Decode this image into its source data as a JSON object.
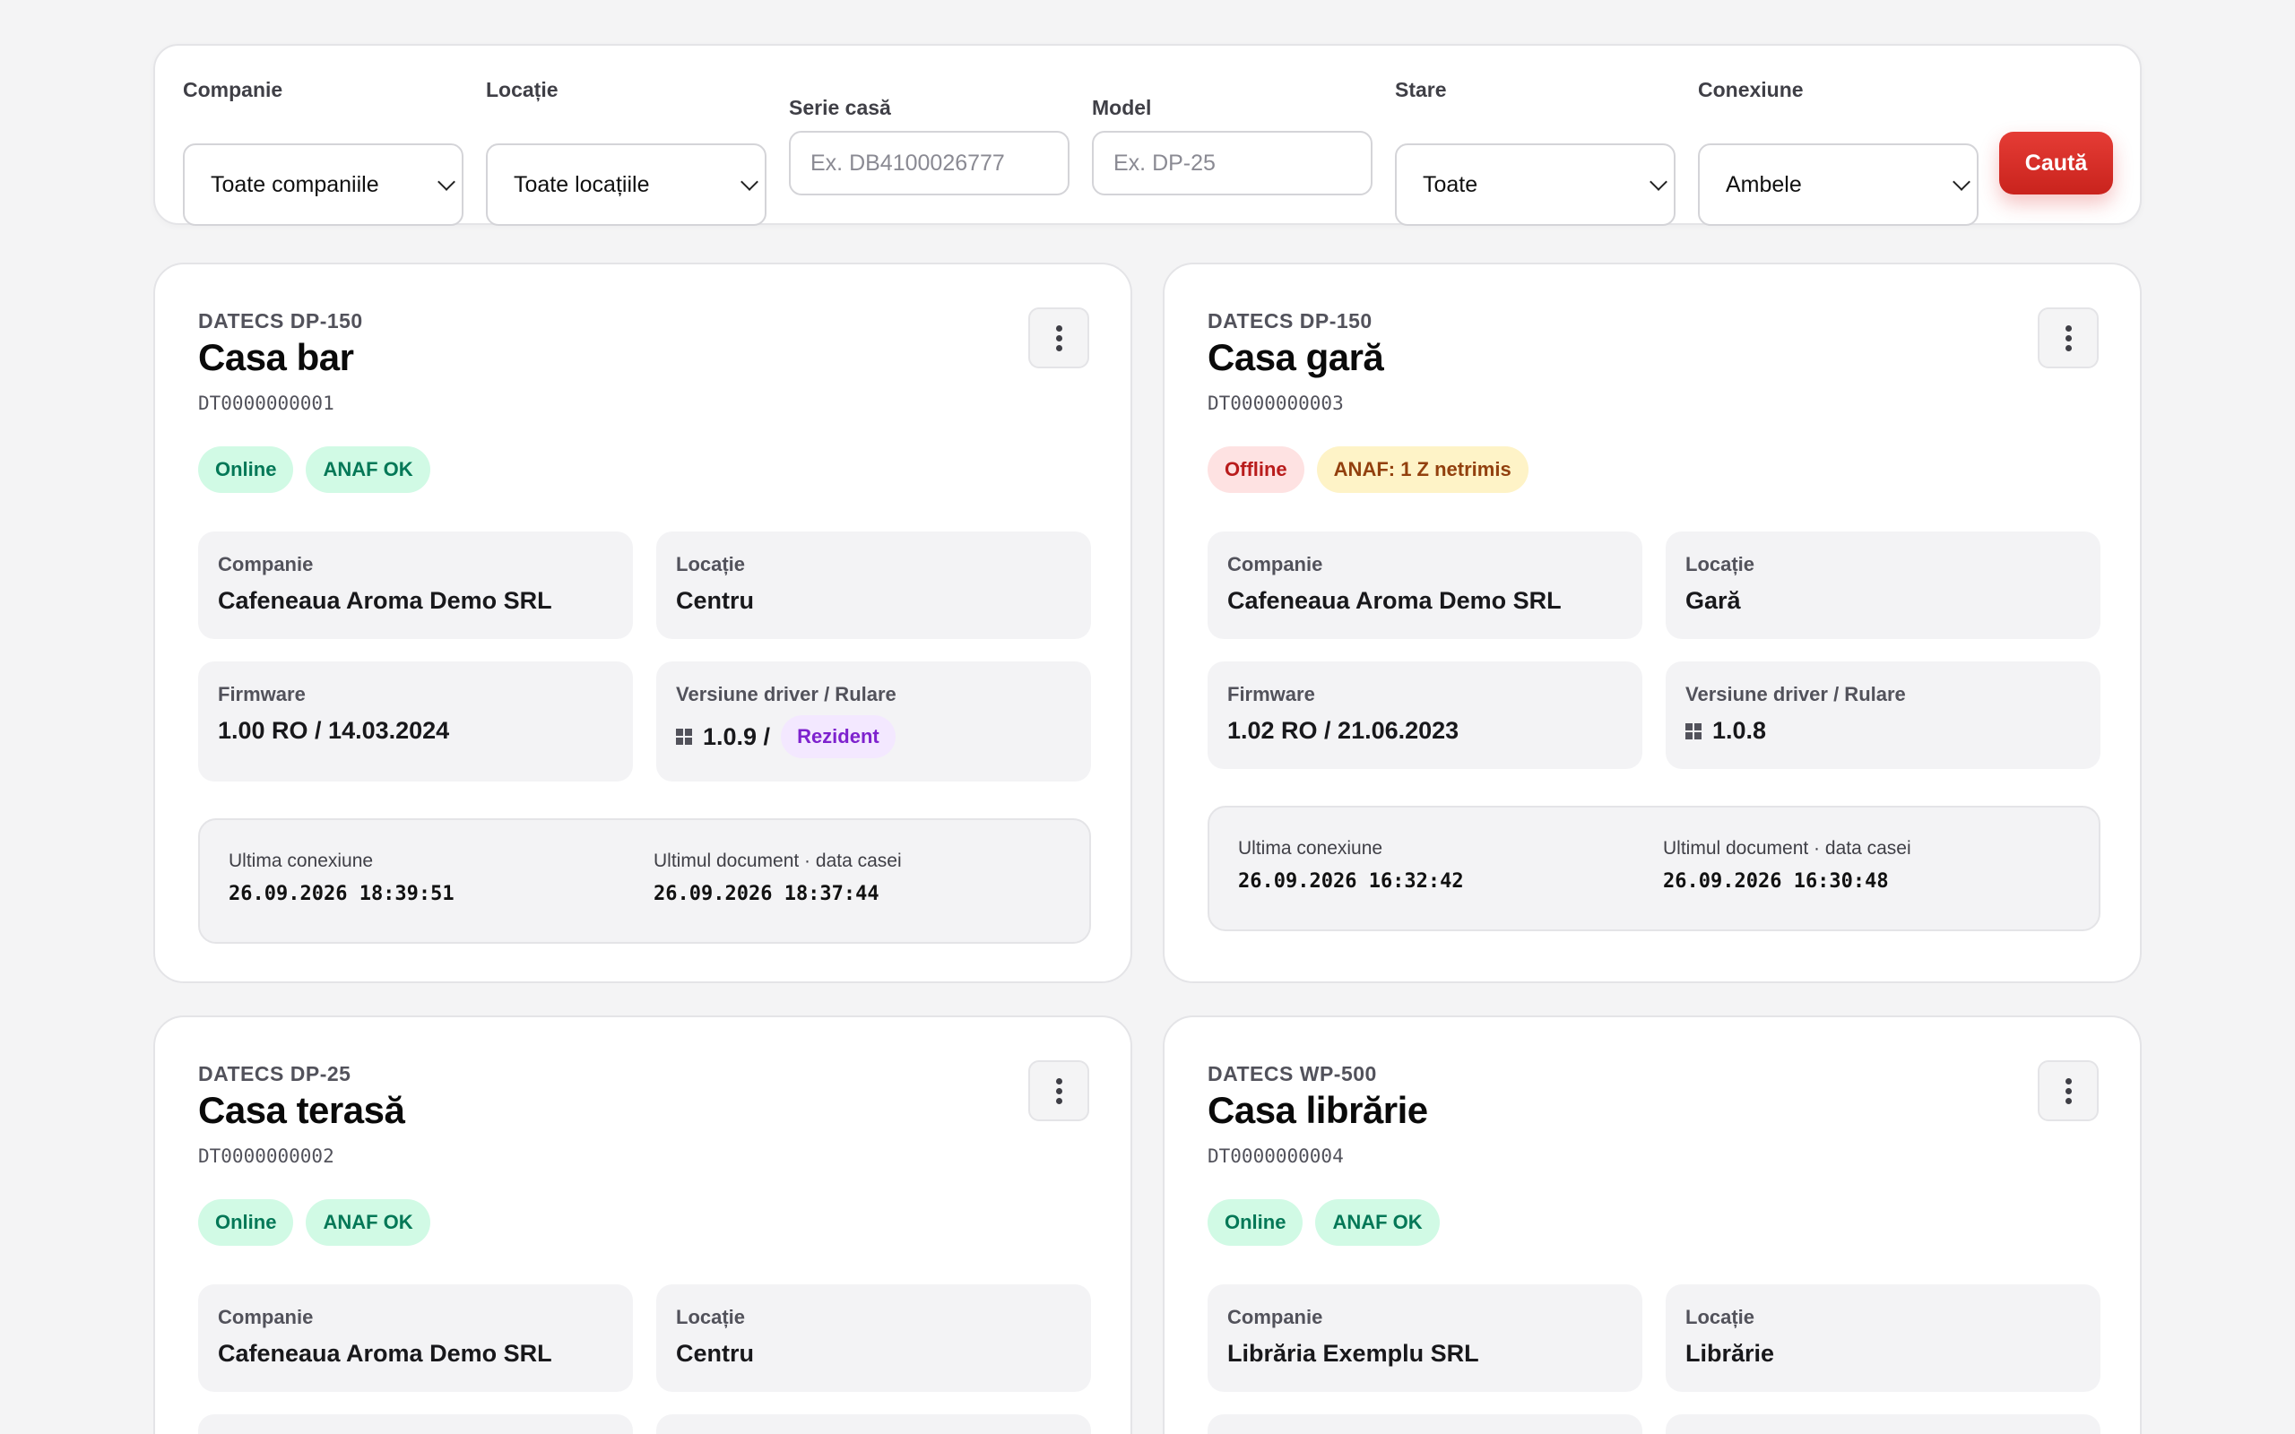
{
  "filters": {
    "company": {
      "label": "Companie",
      "value": "Toate companiile"
    },
    "location": {
      "label": "Locație",
      "value": "Toate locațiile"
    },
    "serial": {
      "label": "Serie casă",
      "placeholder": "Ex. DB4100026777"
    },
    "model": {
      "label": "Model",
      "placeholder": "Ex. DP-25"
    },
    "status": {
      "label": "Stare",
      "value": "Toate"
    },
    "connection": {
      "label": "Conexiune",
      "value": "Ambele"
    },
    "search_label": "Caută"
  },
  "labels": {
    "company": "Companie",
    "location": "Locație",
    "firmware": "Firmware",
    "driver": "Versiune driver / Rulare",
    "last_connection": "Ultima conexiune",
    "last_document": "Ultimul document · data casei"
  },
  "cards": [
    {
      "model": "DATECS DP-150",
      "title": "Casa bar",
      "serial": "DT0000000001",
      "status": "Online",
      "anaf": "ANAF OK",
      "company": "Cafeneaua Aroma Demo SRL",
      "location": "Centru",
      "firmware": "1.00 RO / 14.03.2024",
      "driver": "1.0.9 /",
      "run_mode": "Rezident",
      "last_connection": "26.09.2026 18:39:51",
      "last_document": "26.09.2026 18:37:44"
    },
    {
      "model": "DATECS DP-150",
      "title": "Casa gară",
      "serial": "DT0000000003",
      "status": "Offline",
      "anaf": "ANAF: 1 Z netrimis",
      "company": "Cafeneaua Aroma Demo SRL",
      "location": "Gară",
      "firmware": "1.02 RO / 21.06.2023",
      "driver": "1.0.8",
      "last_connection": "26.09.2026 16:32:42",
      "last_document": "26.09.2026 16:30:48"
    },
    {
      "model": "DATECS DP-25",
      "title": "Casa terasă",
      "serial": "DT0000000002",
      "status": "Online",
      "anaf": "ANAF OK",
      "company": "Cafeneaua Aroma Demo SRL",
      "location": "Centru"
    },
    {
      "model": "DATECS WP-500",
      "title": "Casa librărie",
      "serial": "DT0000000004",
      "status": "Online",
      "anaf": "ANAF OK",
      "company": "Librăria Exemplu SRL",
      "location": "Librărie"
    }
  ],
  "colors": {
    "primary": "#dc2f2a",
    "ok_bg": "#d1fae5",
    "ok_text": "#047857",
    "bad_bg": "#fee2e2",
    "bad_text": "#b91c1c",
    "warn_bg": "#fef3c7",
    "warn_text": "#92400e",
    "run_bg": "#f3e8ff",
    "run_text": "#7e22ce"
  }
}
